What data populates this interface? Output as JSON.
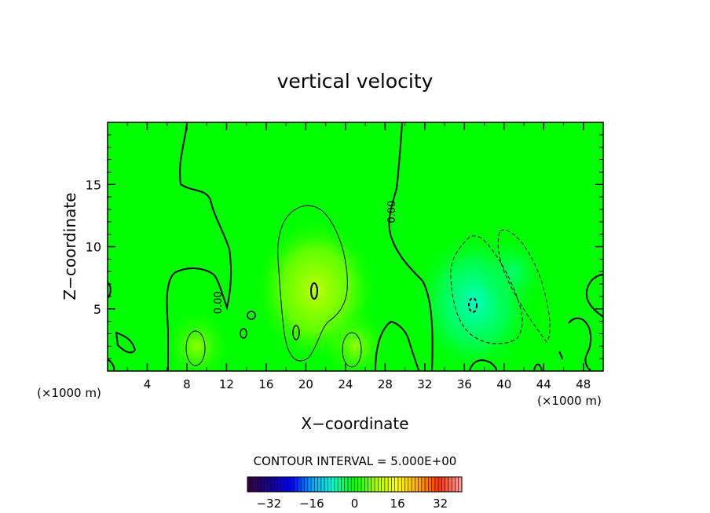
{
  "chart_data": {
    "type": "heatmap",
    "title": "vertical velocity",
    "xlabel": "X−coordinate",
    "ylabel": "Z−coordinate",
    "x_unit_left": "(×1000 m)",
    "x_unit_right": "(×1000 m)",
    "xlim": [
      0,
      50
    ],
    "ylim": [
      0,
      20
    ],
    "x_ticks": [
      4,
      8,
      12,
      16,
      20,
      24,
      28,
      32,
      36,
      40,
      44,
      48
    ],
    "y_ticks": [
      5,
      10,
      15
    ],
    "contour_interval_text": "CONTOUR INTERVAL = 5.000E+00",
    "contour_labels": [
      {
        "text": "0.00",
        "x": 11.5,
        "y": 5.5
      },
      {
        "text": "0.00",
        "x": 29.0,
        "y": 12.8
      }
    ],
    "field_features": [
      {
        "kind": "updraft",
        "x": 21,
        "y": 6.5,
        "peak": 9
      },
      {
        "kind": "updraft",
        "x": 9,
        "y": 2,
        "peak": 5
      },
      {
        "kind": "updraft",
        "x": 25,
        "y": 2,
        "peak": 4
      },
      {
        "kind": "downdraft",
        "x": 37,
        "y": 5.5,
        "peak": -6
      },
      {
        "kind": "downdraft",
        "x": 41,
        "y": 8,
        "peak": -5
      }
    ],
    "colorbar": {
      "min": -40,
      "max": 40,
      "ticks": [
        "−32",
        "−16",
        "0",
        "16",
        "32"
      ],
      "tick_values": [
        -32,
        -16,
        0,
        16,
        32
      ]
    },
    "colors": {
      "background": "#00ff00",
      "axis": "#000000",
      "colormap": [
        "#330044",
        "#1a0099",
        "#0000ff",
        "#00aaff",
        "#00ffcc",
        "#00ff00",
        "#aaff00",
        "#ffff00",
        "#ffaa00",
        "#ff3300",
        "#ff9999"
      ]
    }
  }
}
